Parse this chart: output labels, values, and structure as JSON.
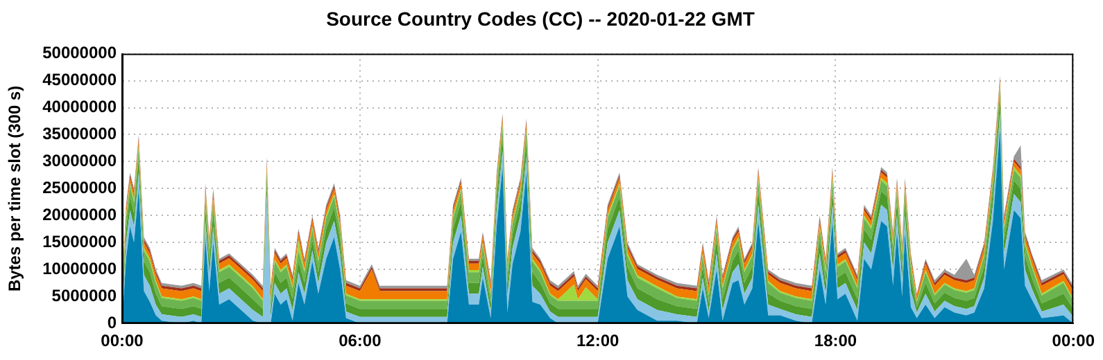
{
  "chart_data": {
    "type": "area",
    "stacked": true,
    "title": "Source Country Codes (CC) -- 2020-01-22 GMT",
    "ylabel": "Bytes per time slot (300 s)",
    "x": [
      0,
      0.1,
      0.2,
      0.3,
      0.42,
      0.55,
      0.7,
      0.85,
      1,
      1.5,
      1.8,
      2,
      2.1,
      2.2,
      2.3,
      2.45,
      2.7,
      3,
      3.3,
      3.55,
      3.65,
      3.75,
      3.85,
      4,
      4.15,
      4.3,
      4.45,
      4.6,
      4.8,
      4.95,
      5.15,
      5.35,
      5.5,
      5.65,
      6,
      6.3,
      6.5,
      7,
      7.5,
      8,
      8.2,
      8.35,
      8.55,
      8.75,
      9,
      9.1,
      9.3,
      9.45,
      9.6,
      9.72,
      9.85,
      10.05,
      10.2,
      10.35,
      10.55,
      10.8,
      11,
      11.4,
      11.5,
      11.7,
      12,
      12.25,
      12.55,
      12.75,
      13,
      13.5,
      14,
      14.5,
      14.65,
      14.8,
      15,
      15.15,
      15.4,
      15.55,
      15.7,
      15.9,
      16.05,
      16.3,
      16.6,
      17,
      17.4,
      17.6,
      17.75,
      17.92,
      18.05,
      18.25,
      18.55,
      18.72,
      18.9,
      19.15,
      19.3,
      19.45,
      19.55,
      19.68,
      19.75,
      19.9,
      20.05,
      20.27,
      20.5,
      20.75,
      21,
      21.3,
      21.5,
      21.75,
      21.97,
      22.15,
      22.25,
      22.5,
      22.67,
      22.78,
      22.95,
      23.2,
      23.75,
      24
    ],
    "xlim": [
      0,
      24
    ],
    "xticks": [
      {
        "value": 0,
        "label": "00:00"
      },
      {
        "value": 6,
        "label": "06:00"
      },
      {
        "value": 12,
        "label": "12:00"
      },
      {
        "value": 18,
        "label": "18:00"
      },
      {
        "value": 24,
        "label": "00:00"
      }
    ],
    "ylim": [
      0,
      50000000
    ],
    "yticks": [
      0,
      5000000,
      10000000,
      15000000,
      20000000,
      25000000,
      30000000,
      35000000,
      40000000,
      45000000,
      50000000
    ],
    "grid": true,
    "series": [
      {
        "color": "#0081b2",
        "values": [
          0,
          12000000.0,
          18000000.0,
          15000000.0,
          25000000.0,
          6000000.0,
          4000000.0,
          1500000.0,
          500000.0,
          0,
          500000.0,
          0,
          16000000.0,
          6000000.0,
          15000000.0,
          3500000.0,
          4500000.0,
          2500000.0,
          500000.0,
          0,
          0,
          0,
          5500000.0,
          3500000.0,
          4500000.0,
          500000.0,
          7500000.0,
          3500000.0,
          11500000.0,
          5500000.0,
          12000000.0,
          16000000.0,
          10000000.0,
          1000000.0,
          0,
          0,
          0,
          0,
          0,
          0,
          0,
          12000000.0,
          17000000.0,
          3500000.0,
          3500000.0,
          8500000.0,
          1000000.0,
          18000000.0,
          29000000.0,
          2000000.0,
          11000000.0,
          17000000.0,
          28000000.0,
          4000000.0,
          3500000.0,
          1000000.0,
          0,
          0,
          0,
          0,
          0,
          12000000.0,
          18000000.0,
          5000000.0,
          2500000.0,
          500000.0,
          500000.0,
          0,
          6500000.0,
          1000000.0,
          10000000.0,
          500000.0,
          7500000.0,
          8000000.0,
          3500000.0,
          6500000.0,
          19000000.0,
          1500000.0,
          1500000.0,
          500000.0,
          0,
          10000000.0,
          3500000.0,
          19000000.0,
          4500000.0,
          5500000.0,
          500000.0,
          12000000.0,
          10000000.0,
          19000000.0,
          18000000.0,
          7000000.0,
          17000000.0,
          5000000.0,
          17000000.0,
          3000000.0,
          1000000.0,
          3500000.0,
          1000000.0,
          3000000.0,
          2000000.0,
          1500000.0,
          2000000.0,
          6500000.0,
          19000000.0,
          36000000.0,
          10000000.0,
          21000000.0,
          19500000.0,
          7000000.0,
          4500000.0,
          1000000.0,
          1500000.0,
          0
        ]
      },
      {
        "color": "#88c4e4",
        "values": [
          1200000.0,
          3000000.0,
          3000000.0,
          3000000.0,
          3000000.0,
          3000000.0,
          3000000.0,
          2000000.0,
          1200000.0,
          1200000.0,
          1200000.0,
          1200000.0,
          3000000.0,
          3000000.0,
          3000000.0,
          2000000.0,
          2000000.0,
          2000000.0,
          2000000.0,
          1200000.0,
          24000000.0,
          1200000.0,
          2000000.0,
          2000000.0,
          2000000.0,
          2000000.0,
          2000000.0,
          2000000.0,
          2000000.0,
          2000000.0,
          3000000.0,
          3000000.0,
          3000000.0,
          1200000.0,
          1200000.0,
          1200000.0,
          1200000.0,
          1200000.0,
          1200000.0,
          1200000.0,
          1200000.0,
          3000000.0,
          3000000.0,
          2000000.0,
          2000000.0,
          2000000.0,
          1200000.0,
          3000000.0,
          3000000.0,
          3000000.0,
          3000000.0,
          3000000.0,
          3000000.0,
          3000000.0,
          2000000.0,
          1200000.0,
          1200000.0,
          1200000.0,
          1200000.0,
          1200000.0,
          1200000.0,
          3000000.0,
          3000000.0,
          3000000.0,
          2000000.0,
          2000000.0,
          1200000.0,
          1200000.0,
          2000000.0,
          1200000.0,
          3000000.0,
          2000000.0,
          2000000.0,
          3000000.0,
          2000000.0,
          2000000.0,
          3000000.0,
          2000000.0,
          1200000.0,
          1200000.0,
          1200000.0,
          3000000.0,
          2000000.0,
          3000000.0,
          2000000.0,
          2000000.0,
          2000000.0,
          3000000.0,
          3000000.0,
          3000000.0,
          3000000.0,
          3000000.0,
          3000000.0,
          3000000.0,
          3000000.0,
          3000000.0,
          1000000.0,
          2000000.0,
          1200000.0,
          1200000.0,
          1200000.0,
          1200000.0,
          1200000.0,
          2000000.0,
          3000000.0,
          3000000.0,
          3000000.0,
          3000000.0,
          3000000.0,
          3000000.0,
          2000000.0,
          1200000.0,
          2000000.0,
          1200000.0
        ]
      },
      {
        "color": "#4e9a2a",
        "values": [
          1500000.0,
          2500000.0,
          2500000.0,
          2500000.0,
          2500000.0,
          2500000.0,
          2500000.0,
          2000000.0,
          1500000.0,
          1500000.0,
          1500000.0,
          1500000.0,
          2500000.0,
          2500000.0,
          2500000.0,
          2000000.0,
          2000000.0,
          2000000.0,
          2000000.0,
          1500000.0,
          2000000.0,
          1500000.0,
          2000000.0,
          2000000.0,
          2000000.0,
          2000000.0,
          2000000.0,
          2000000.0,
          2000000.0,
          2000000.0,
          2500000.0,
          2500000.0,
          2500000.0,
          1500000.0,
          1500000.0,
          1500000.0,
          1500000.0,
          1500000.0,
          1500000.0,
          1500000.0,
          1500000.0,
          2500000.0,
          2500000.0,
          2000000.0,
          2000000.0,
          2000000.0,
          1500000.0,
          2500000.0,
          2500000.0,
          2500000.0,
          2500000.0,
          2500000.0,
          2500000.0,
          2500000.0,
          2000000.0,
          1500000.0,
          1500000.0,
          1500000.0,
          1500000.0,
          1500000.0,
          1500000.0,
          2500000.0,
          2500000.0,
          2500000.0,
          2000000.0,
          2000000.0,
          1500000.0,
          1500000.0,
          2000000.0,
          1500000.0,
          2500000.0,
          2000000.0,
          2000000.0,
          2500000.0,
          2000000.0,
          2000000.0,
          2500000.0,
          2000000.0,
          1500000.0,
          1500000.0,
          1500000.0,
          2500000.0,
          2000000.0,
          2500000.0,
          2000000.0,
          2000000.0,
          2000000.0,
          2500000.0,
          2500000.0,
          2500000.0,
          2500000.0,
          2500000.0,
          2500000.0,
          2500000.0,
          2500000.0,
          2500000.0,
          1000000.0,
          2000000.0,
          1500000.0,
          1500000.0,
          1500000.0,
          1500000.0,
          1500000.0,
          2000000.0,
          2500000.0,
          2500000.0,
          2500000.0,
          2500000.0,
          2500000.0,
          2500000.0,
          2000000.0,
          1500000.0,
          2000000.0,
          1500000.0
        ]
      },
      {
        "color": "#6cb450",
        "values": [
          1500000.0,
          2000000.0,
          2000000.0,
          2000000.0,
          2000000.0,
          2000000.0,
          2000000.0,
          2000000.0,
          1500000.0,
          1500000.0,
          1500000.0,
          1500000.0,
          2000000.0,
          2000000.0,
          2000000.0,
          2000000.0,
          2000000.0,
          2000000.0,
          2000000.0,
          1500000.0,
          2000000.0,
          1500000.0,
          2000000.0,
          2000000.0,
          2000000.0,
          2000000.0,
          2000000.0,
          2000000.0,
          2000000.0,
          2000000.0,
          2000000.0,
          2000000.0,
          2000000.0,
          1500000.0,
          1500000.0,
          1500000.0,
          1500000.0,
          1500000.0,
          1500000.0,
          1500000.0,
          1500000.0,
          2000000.0,
          2000000.0,
          2000000.0,
          2000000.0,
          2000000.0,
          1500000.0,
          2000000.0,
          2000000.0,
          2000000.0,
          2000000.0,
          2000000.0,
          2000000.0,
          2000000.0,
          2000000.0,
          1500000.0,
          1500000.0,
          1500000.0,
          1500000.0,
          1500000.0,
          1500000.0,
          2000000.0,
          2000000.0,
          2000000.0,
          2000000.0,
          2000000.0,
          1500000.0,
          1500000.0,
          2000000.0,
          1500000.0,
          2000000.0,
          2000000.0,
          2000000.0,
          2000000.0,
          2000000.0,
          2000000.0,
          2000000.0,
          2000000.0,
          1500000.0,
          1500000.0,
          1500000.0,
          2000000.0,
          2000000.0,
          2000000.0,
          2000000.0,
          2000000.0,
          2000000.0,
          2000000.0,
          2000000.0,
          2000000.0,
          2000000.0,
          2000000.0,
          2000000.0,
          2000000.0,
          2000000.0,
          2000000.0,
          1000000.0,
          2000000.0,
          1500000.0,
          1500000.0,
          1500000.0,
          1500000.0,
          1500000.0,
          2000000.0,
          2000000.0,
          2000000.0,
          2000000.0,
          2000000.0,
          2000000.0,
          2000000.0,
          2000000.0,
          1500000.0,
          2000000.0,
          1500000.0
        ]
      },
      {
        "color": "#a0d840",
        "values": [
          300000.0,
          500000.0,
          500000.0,
          500000.0,
          500000.0,
          500000.0,
          500000.0,
          400000.0,
          300000.0,
          300000.0,
          300000.0,
          300000.0,
          500000.0,
          500000.0,
          500000.0,
          400000.0,
          400000.0,
          400000.0,
          400000.0,
          300000.0,
          500000.0,
          300000.0,
          400000.0,
          400000.0,
          400000.0,
          400000.0,
          2000000.0,
          400000.0,
          400000.0,
          400000.0,
          500000.0,
          500000.0,
          500000.0,
          300000.0,
          300000.0,
          300000.0,
          300000.0,
          300000.0,
          300000.0,
          300000.0,
          300000.0,
          500000.0,
          500000.0,
          400000.0,
          400000.0,
          400000.0,
          300000.0,
          500000.0,
          500000.0,
          500000.0,
          500000.0,
          500000.0,
          500000.0,
          500000.0,
          400000.0,
          300000.0,
          300000.0,
          3000000.0,
          300000.0,
          2500000.0,
          300000.0,
          500000.0,
          500000.0,
          500000.0,
          400000.0,
          400000.0,
          300000.0,
          300000.0,
          400000.0,
          300000.0,
          500000.0,
          400000.0,
          400000.0,
          500000.0,
          400000.0,
          400000.0,
          500000.0,
          400000.0,
          300000.0,
          300000.0,
          300000.0,
          500000.0,
          400000.0,
          500000.0,
          400000.0,
          400000.0,
          400000.0,
          500000.0,
          500000.0,
          500000.0,
          500000.0,
          500000.0,
          500000.0,
          500000.0,
          500000.0,
          500000.0,
          200000.0,
          400000.0,
          300000.0,
          300000.0,
          300000.0,
          300000.0,
          300000.0,
          400000.0,
          500000.0,
          500000.0,
          500000.0,
          500000.0,
          500000.0,
          500000.0,
          400000.0,
          300000.0,
          400000.0,
          300000.0
        ]
      },
      {
        "color": "#f07c00",
        "values": [
          1500000.0,
          1000000.0,
          1000000.0,
          1000000.0,
          1000000.0,
          1000000.0,
          1000000.0,
          1200000.0,
          1500000.0,
          1500000.0,
          1500000.0,
          1500000.0,
          1000000.0,
          1000000.0,
          1000000.0,
          1200000.0,
          1200000.0,
          1200000.0,
          1200000.0,
          1500000.0,
          1000000.0,
          1500000.0,
          1200000.0,
          1200000.0,
          1200000.0,
          1200000.0,
          1200000.0,
          1200000.0,
          1200000.0,
          1200000.0,
          1000000.0,
          1000000.0,
          1000000.0,
          1500000.0,
          1500000.0,
          5500000.0,
          1500000.0,
          1500000.0,
          1500000.0,
          1500000.0,
          1500000.0,
          1000000.0,
          1000000.0,
          1200000.0,
          1200000.0,
          1200000.0,
          1500000.0,
          1000000.0,
          1000000.0,
          1000000.0,
          1000000.0,
          1000000.0,
          1000000.0,
          1000000.0,
          1200000.0,
          1500000.0,
          1500000.0,
          1500000.0,
          1500000.0,
          1500000.0,
          1500000.0,
          1000000.0,
          1000000.0,
          1000000.0,
          1200000.0,
          1200000.0,
          1500000.0,
          1500000.0,
          1200000.0,
          1500000.0,
          1000000.0,
          1200000.0,
          1200000.0,
          1000000.0,
          1200000.0,
          1200000.0,
          1000000.0,
          1200000.0,
          1500000.0,
          1500000.0,
          1500000.0,
          1000000.0,
          1200000.0,
          1000000.0,
          1200000.0,
          1200000.0,
          1200000.0,
          1000000.0,
          1000000.0,
          1000000.0,
          1000000.0,
          1000000.0,
          1000000.0,
          1000000.0,
          1000000.0,
          1000000.0,
          800000.0,
          1200000.0,
          1500000.0,
          1500000.0,
          1500000.0,
          1500000.0,
          1500000.0,
          1200000.0,
          1000000.0,
          1000000.0,
          1000000.0,
          1000000.0,
          1000000.0,
          1000000.0,
          1200000.0,
          1500000.0,
          1200000.0,
          1500000.0
        ]
      },
      {
        "color": "#a0301a",
        "values": [
          500000.0,
          500000.0,
          500000.0,
          500000.0,
          500000.0,
          500000.0,
          500000.0,
          500000.0,
          500000.0,
          500000.0,
          500000.0,
          500000.0,
          500000.0,
          500000.0,
          500000.0,
          500000.0,
          500000.0,
          500000.0,
          500000.0,
          500000.0,
          500000.0,
          500000.0,
          500000.0,
          500000.0,
          500000.0,
          500000.0,
          500000.0,
          500000.0,
          500000.0,
          500000.0,
          500000.0,
          500000.0,
          500000.0,
          500000.0,
          500000.0,
          500000.0,
          500000.0,
          500000.0,
          500000.0,
          500000.0,
          500000.0,
          500000.0,
          500000.0,
          500000.0,
          500000.0,
          500000.0,
          500000.0,
          500000.0,
          500000.0,
          500000.0,
          500000.0,
          500000.0,
          500000.0,
          500000.0,
          500000.0,
          500000.0,
          500000.0,
          500000.0,
          500000.0,
          500000.0,
          500000.0,
          500000.0,
          500000.0,
          500000.0,
          500000.0,
          500000.0,
          500000.0,
          500000.0,
          500000.0,
          500000.0,
          500000.0,
          500000.0,
          500000.0,
          500000.0,
          500000.0,
          500000.0,
          500000.0,
          500000.0,
          500000.0,
          500000.0,
          500000.0,
          500000.0,
          500000.0,
          500000.0,
          500000.0,
          500000.0,
          500000.0,
          500000.0,
          500000.0,
          500000.0,
          500000.0,
          500000.0,
          500000.0,
          500000.0,
          500000.0,
          500000.0,
          300000.0,
          500000.0,
          500000.0,
          500000.0,
          500000.0,
          500000.0,
          500000.0,
          500000.0,
          500000.0,
          500000.0,
          500000.0,
          500000.0,
          500000.0,
          500000.0,
          500000.0,
          500000.0,
          500000.0,
          500000.0
        ]
      },
      {
        "color": "#999999",
        "values": [
          500000.0,
          500000.0,
          500000.0,
          500000.0,
          500000.0,
          500000.0,
          500000.0,
          400000.0,
          500000.0,
          500000.0,
          500000.0,
          500000.0,
          500000.0,
          500000.0,
          500000.0,
          400000.0,
          400000.0,
          400000.0,
          400000.0,
          500000.0,
          1000000.0,
          500000.0,
          400000.0,
          400000.0,
          400000.0,
          400000.0,
          400000.0,
          400000.0,
          400000.0,
          400000.0,
          500000.0,
          500000.0,
          500000.0,
          500000.0,
          500000.0,
          500000.0,
          500000.0,
          500000.0,
          500000.0,
          500000.0,
          500000.0,
          500000.0,
          500000.0,
          400000.0,
          400000.0,
          400000.0,
          500000.0,
          500000.0,
          500000.0,
          500000.0,
          500000.0,
          500000.0,
          500000.0,
          500000.0,
          400000.0,
          500000.0,
          500000.0,
          500000.0,
          500000.0,
          500000.0,
          500000.0,
          500000.0,
          500000.0,
          500000.0,
          400000.0,
          400000.0,
          500000.0,
          500000.0,
          400000.0,
          500000.0,
          500000.0,
          400000.0,
          400000.0,
          500000.0,
          400000.0,
          400000.0,
          500000.0,
          400000.0,
          500000.0,
          500000.0,
          500000.0,
          500000.0,
          400000.0,
          500000.0,
          400000.0,
          400000.0,
          400000.0,
          500000.0,
          500000.0,
          500000.0,
          500000.0,
          500000.0,
          500000.0,
          500000.0,
          500000.0,
          500000.0,
          200000.0,
          400000.0,
          500000.0,
          500000.0,
          500000.0,
          4000000.0,
          500000.0,
          400000.0,
          500000.0,
          500000.0,
          500000.0,
          500000.0,
          4000000.0,
          500000.0,
          400000.0,
          500000.0,
          400000.0,
          500000.0
        ]
      }
    ]
  }
}
